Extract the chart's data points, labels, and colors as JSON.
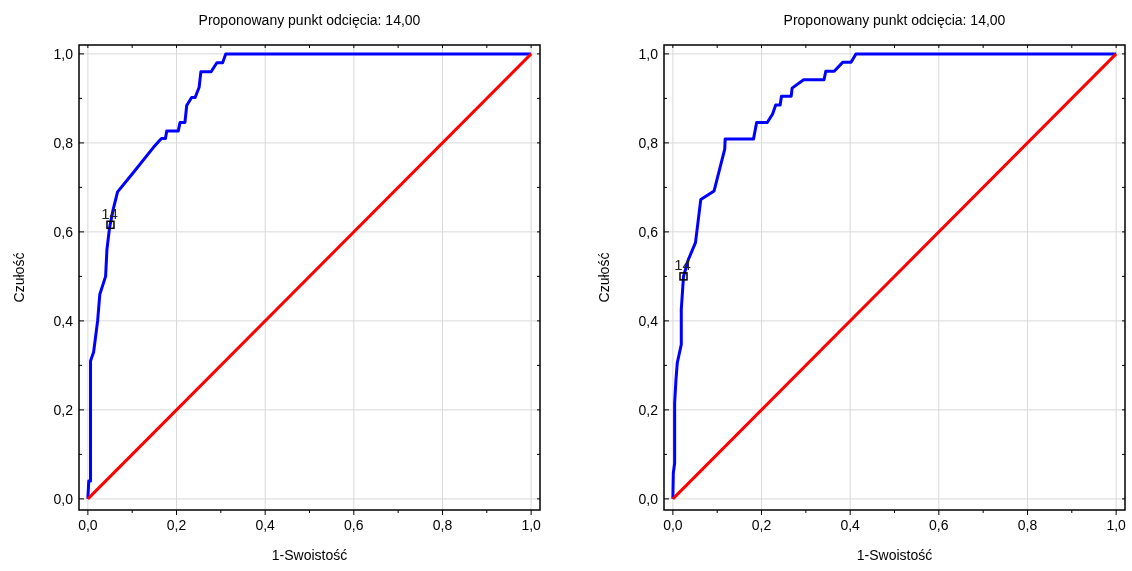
{
  "chart_data": [
    {
      "type": "line",
      "title": "Proponowany punkt odcięcia: 14,00",
      "xlabel": "1-Swoistość",
      "ylabel": "Czułość",
      "xlim": [
        -0.02,
        1.02
      ],
      "ylim": [
        -0.025,
        1.02
      ],
      "xticks": [
        {
          "value": 0,
          "label": "0,0"
        },
        {
          "value": 0.1,
          "label": null
        },
        {
          "value": 0.2,
          "label": "0,2"
        },
        {
          "value": 0.3,
          "label": null
        },
        {
          "value": 0.4,
          "label": "0,4"
        },
        {
          "value": 0.5,
          "label": null
        },
        {
          "value": 0.6,
          "label": "0,6"
        },
        {
          "value": 0.7,
          "label": null
        },
        {
          "value": 0.8,
          "label": "0,8"
        },
        {
          "value": 0.9,
          "label": null
        },
        {
          "value": 1,
          "label": "1,0"
        }
      ],
      "yticks": [
        {
          "value": 0,
          "label": "0,0"
        },
        {
          "value": 0.1,
          "label": null
        },
        {
          "value": 0.2,
          "label": "0,2"
        },
        {
          "value": 0.3,
          "label": null
        },
        {
          "value": 0.4,
          "label": "0,4"
        },
        {
          "value": 0.5,
          "label": null
        },
        {
          "value": 0.6,
          "label": "0,6"
        },
        {
          "value": 0.7,
          "label": null
        },
        {
          "value": 0.8,
          "label": "0,8"
        },
        {
          "value": 0.9,
          "label": null
        },
        {
          "value": 1,
          "label": "1,0"
        }
      ],
      "grid": true,
      "line_style": "solid",
      "marker": "none",
      "series": [
        {
          "color": "#0000ff",
          "x": [
            0,
            0.002,
            0.006,
            0.006,
            0.013,
            0.022,
            0.027,
            0.04,
            0.043,
            0.049,
            0.057,
            0.067,
            0.1,
            0.148,
            0.166,
            0.175,
            0.178,
            0.204,
            0.208,
            0.219,
            0.223,
            0.234,
            0.242,
            0.251,
            0.255,
            0.278,
            0.291,
            0.304,
            0.311,
            1
          ],
          "values": [
            0,
            0.04,
            0.04,
            0.31,
            0.33,
            0.4,
            0.46,
            0.5,
            0.56,
            0.61,
            0.65,
            0.69,
            0.73,
            0.79,
            0.81,
            0.81,
            0.827,
            0.827,
            0.846,
            0.846,
            0.884,
            0.902,
            0.902,
            0.925,
            0.96,
            0.96,
            0.98,
            0.98,
            1,
            1
          ]
        },
        {
          "color": "#ff0000",
          "x": [
            0,
            1
          ],
          "values": [
            0,
            1
          ]
        }
      ],
      "annotations": [
        {
          "text": "14",
          "x": 0.051,
          "y": 0.616
        }
      ]
    },
    {
      "type": "line",
      "title": "Proponowany punkt odcięcia: 14,00",
      "xlabel": "1-Swoistość",
      "ylabel": "Czułość",
      "xlim": [
        -0.02,
        1.02
      ],
      "ylim": [
        -0.025,
        1.02
      ],
      "xticks": [
        {
          "value": 0,
          "label": "0,0"
        },
        {
          "value": 0.1,
          "label": null
        },
        {
          "value": 0.2,
          "label": "0,2"
        },
        {
          "value": 0.3,
          "label": null
        },
        {
          "value": 0.4,
          "label": "0,4"
        },
        {
          "value": 0.5,
          "label": null
        },
        {
          "value": 0.6,
          "label": "0,6"
        },
        {
          "value": 0.7,
          "label": null
        },
        {
          "value": 0.8,
          "label": "0,8"
        },
        {
          "value": 0.9,
          "label": null
        },
        {
          "value": 1,
          "label": "1,0"
        }
      ],
      "yticks": [
        {
          "value": 0,
          "label": "0,0"
        },
        {
          "value": 0.1,
          "label": null
        },
        {
          "value": 0.2,
          "label": "0,2"
        },
        {
          "value": 0.3,
          "label": null
        },
        {
          "value": 0.4,
          "label": "0,4"
        },
        {
          "value": 0.5,
          "label": null
        },
        {
          "value": 0.6,
          "label": "0,6"
        },
        {
          "value": 0.7,
          "label": null
        },
        {
          "value": 0.8,
          "label": "0,8"
        },
        {
          "value": 0.9,
          "label": null
        },
        {
          "value": 1,
          "label": "1,0"
        }
      ],
      "grid": true,
      "line_style": "solid",
      "marker": "none",
      "series": [
        {
          "color": "#0000ff",
          "x": [
            0,
            0.001,
            0.004,
            0.004,
            0.007,
            0.01,
            0.019,
            0.019,
            0.024,
            0.035,
            0.051,
            0.063,
            0.093,
            0.117,
            0.118,
            0.182,
            0.189,
            0.213,
            0.225,
            0.232,
            0.242,
            0.245,
            0.267,
            0.269,
            0.295,
            0.341,
            0.345,
            0.364,
            0.383,
            0.402,
            0.413,
            1
          ],
          "values": [
            0,
            0.058,
            0.08,
            0.215,
            0.268,
            0.306,
            0.347,
            0.426,
            0.5,
            0.538,
            0.576,
            0.673,
            0.692,
            0.786,
            0.809,
            0.809,
            0.846,
            0.846,
            0.865,
            0.885,
            0.885,
            0.905,
            0.905,
            0.923,
            0.942,
            0.942,
            0.961,
            0.961,
            0.981,
            0.981,
            1,
            1
          ]
        },
        {
          "color": "#ff0000",
          "x": [
            0,
            1
          ],
          "values": [
            0,
            1
          ]
        }
      ],
      "annotations": [
        {
          "text": "14",
          "x": 0.024,
          "y": 0.5
        }
      ]
    }
  ]
}
